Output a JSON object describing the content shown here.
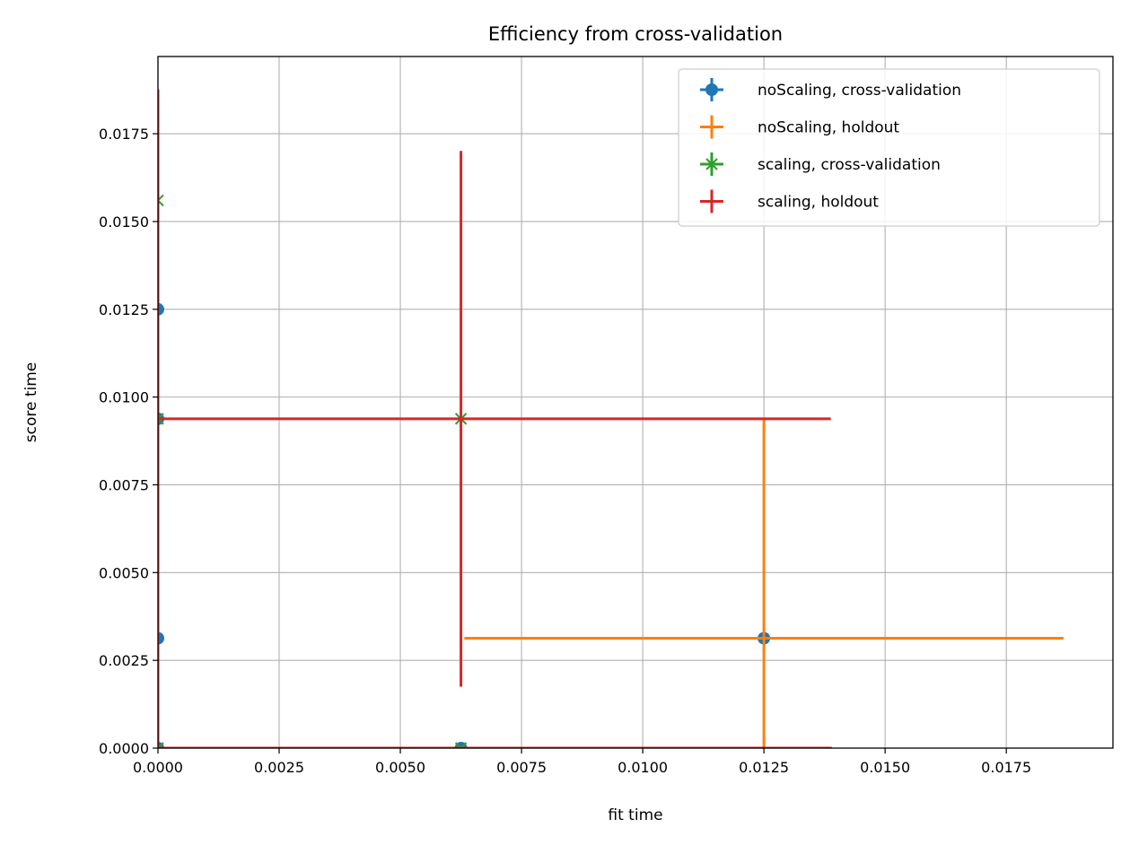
{
  "chart_data": {
    "type": "scatter",
    "title": "Efficiency from cross-validation",
    "xlabel": "fit time",
    "ylabel": "score time",
    "xlim": [
      0,
      0.0197
    ],
    "ylim": [
      0,
      0.0197
    ],
    "xticks": [
      0.0,
      0.0025,
      0.005,
      0.0075,
      0.01,
      0.0125,
      0.015,
      0.0175
    ],
    "xtick_labels": [
      "0.0000",
      "0.0025",
      "0.0050",
      "0.0075",
      "0.0100",
      "0.0125",
      "0.0150",
      "0.0175"
    ],
    "yticks": [
      0.0,
      0.0025,
      0.005,
      0.0075,
      0.01,
      0.0125,
      0.015,
      0.0175
    ],
    "ytick_labels": [
      "0.0000",
      "0.0025",
      "0.0050",
      "0.0075",
      "0.0100",
      "0.0125",
      "0.0150",
      "0.0175"
    ],
    "grid": true,
    "legend_position": "top-right",
    "series": [
      {
        "name": "noScaling, cross-validation",
        "marker": "circle",
        "color": "#1f77b4",
        "points": [
          {
            "x": 0.0,
            "y": 0.0125,
            "xerr": 0.0,
            "yerr": 0.0
          },
          {
            "x": 0.0,
            "y": 0.00313,
            "xerr": 0.0,
            "yerr": 0.0
          },
          {
            "x": 0.0,
            "y": 0.00938,
            "xerr": 0.0,
            "yerr": 0.0
          },
          {
            "x": 0.0,
            "y": 0.0,
            "xerr": 0.0,
            "yerr": 0.0
          },
          {
            "x": 0.00625,
            "y": 0.0,
            "xerr": 0.0,
            "yerr": 0.0
          },
          {
            "x": 0.0125,
            "y": 0.00313,
            "xerr": 0.0,
            "yerr": 0.0
          }
        ]
      },
      {
        "name": "noScaling, holdout",
        "marker": "none",
        "color": "#ff7f0e",
        "points": [
          {
            "x": 0.0125,
            "y": 0.00313,
            "xerr": 0.00618,
            "yerr": 0.00625
          }
        ]
      },
      {
        "name": "scaling, cross-validation",
        "marker": "x",
        "color": "#2ca02c",
        "points": [
          {
            "x": 0.0,
            "y": 0.0156,
            "xerr": 0.0,
            "yerr": 0.0
          },
          {
            "x": 0.0,
            "y": 0.00938,
            "xerr": 0.0,
            "yerr": 0.0
          },
          {
            "x": 0.0,
            "y": 0.0,
            "xerr": 0.0,
            "yerr": 0.0
          },
          {
            "x": 0.00625,
            "y": 0.00938,
            "xerr": 0.0,
            "yerr": 0.0
          },
          {
            "x": 0.00625,
            "y": 0.0,
            "xerr": 0.0,
            "yerr": 0.0
          }
        ]
      },
      {
        "name": "scaling, holdout",
        "marker": "none",
        "color": "#d62728",
        "points": [
          {
            "x": 0.00625,
            "y": 0.00938,
            "xerr": 0.00763,
            "yerr": 0.00763
          },
          {
            "x": 0.0,
            "y": 0.00938,
            "xerr": 0.0,
            "yerr": 0.00938
          },
          {
            "x": 0.0,
            "y": 0.0,
            "xerr": 0.0139,
            "yerr": 0.0
          }
        ]
      }
    ]
  }
}
